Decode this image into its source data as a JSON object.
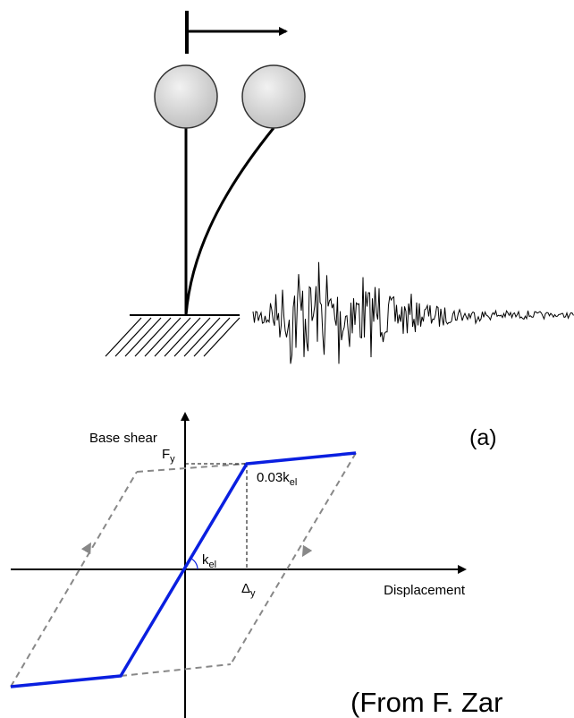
{
  "panel_label": "(a)",
  "axes": {
    "y_label": "Base shear",
    "x_label": "Displacement"
  },
  "annotations": {
    "yield_force": {
      "symbol": "F",
      "subscript": "y"
    },
    "post_yield_stiffness": {
      "symbol": "0.03k",
      "subscript": "el"
    },
    "elastic_stiffness": {
      "symbol": "k",
      "subscript": "el"
    },
    "yield_displacement": {
      "symbol": "Δ",
      "subscript": "y"
    }
  },
  "caption": "(From F. Zar"
}
